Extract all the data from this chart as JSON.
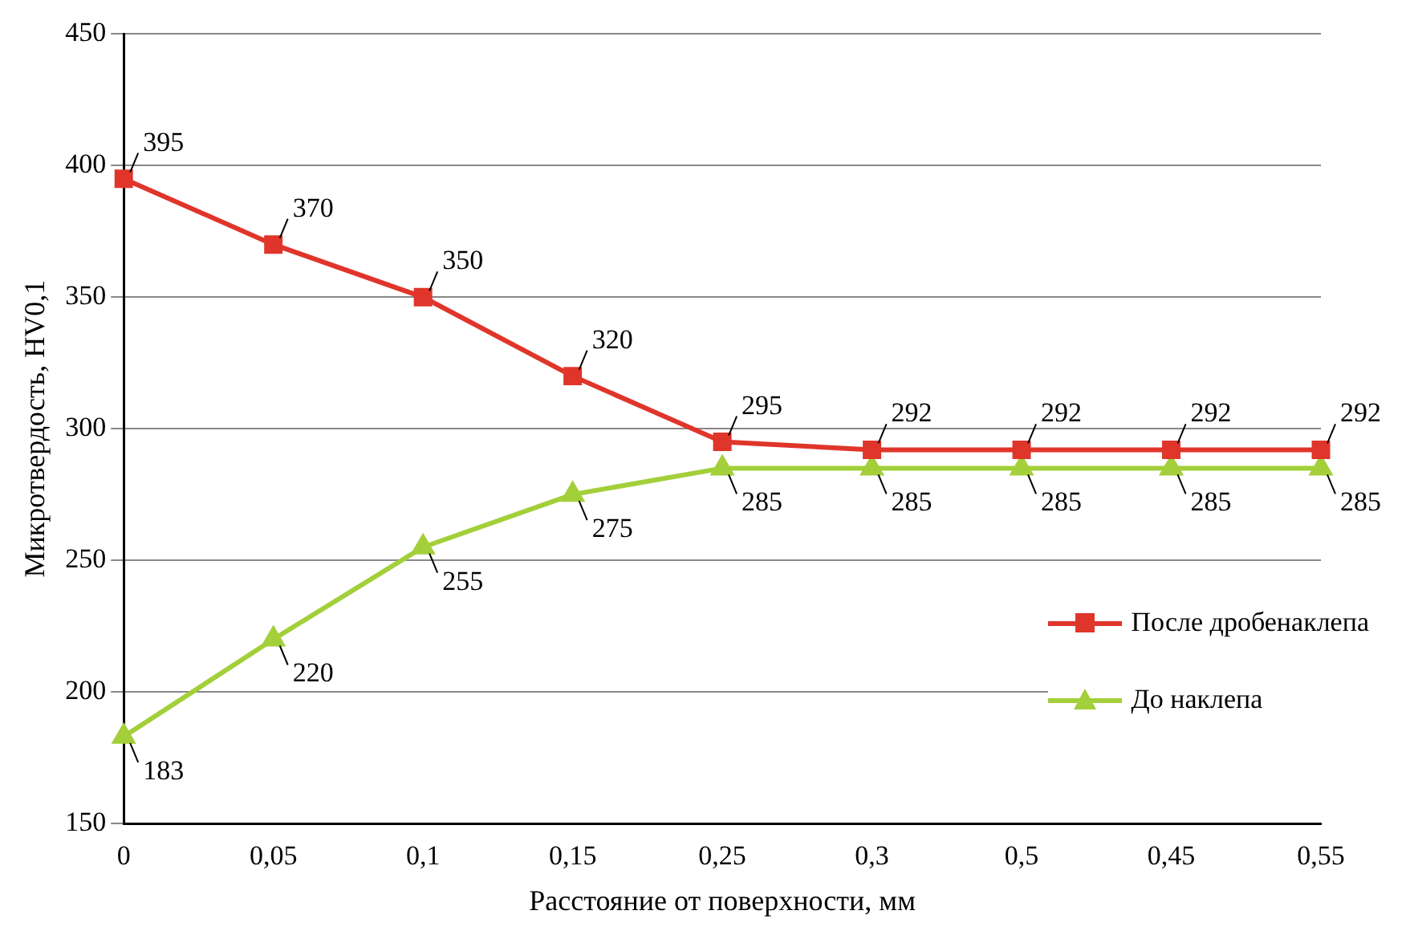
{
  "chart_data": {
    "type": "line",
    "xlabel": "Расстояние от поверхности, мм",
    "ylabel": "Микротвердость, HV0,1",
    "categories": [
      "0",
      "0,05",
      "0,1",
      "0,15",
      "0,25",
      "0,3",
      "0,5",
      "0,45",
      "0,55"
    ],
    "series": [
      {
        "name": "После дробенаклепа",
        "color": "#e0352b",
        "marker": "square",
        "values": [
          395,
          370,
          350,
          320,
          295,
          292,
          292,
          292,
          292
        ]
      },
      {
        "name": "До наклепа",
        "color": "#a3cf3a",
        "marker": "triangle",
        "values": [
          183,
          220,
          255,
          275,
          285,
          285,
          285,
          285,
          285
        ]
      }
    ],
    "ylim": [
      150,
      450
    ],
    "yticks": [
      150,
      200,
      250,
      300,
      350,
      400,
      450
    ],
    "grid": "y",
    "legend": "right",
    "data_labels": true
  }
}
